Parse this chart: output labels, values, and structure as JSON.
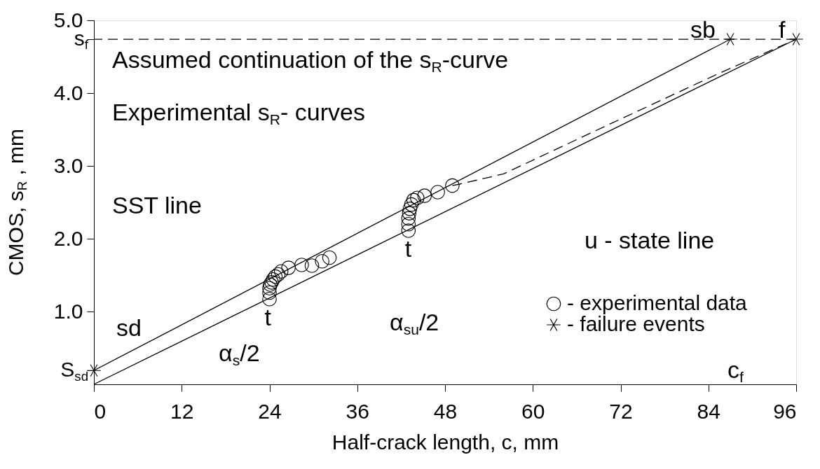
{
  "chart_data": {
    "type": "scatter",
    "xlabel": "Half-crack length, c, mm",
    "ylabel": "CMOS, s$_{R}$ , mm",
    "xlim": [
      0,
      96
    ],
    "ylim": [
      0,
      5
    ],
    "xticks": [
      0,
      12,
      24,
      36,
      48,
      60,
      72,
      84,
      96
    ],
    "yticks": [
      {
        "value": 0.19,
        "label": "S$_{sd}$"
      },
      {
        "value": 1,
        "label": "1.0"
      },
      {
        "value": 2,
        "label": "2.0"
      },
      {
        "value": 3,
        "label": "3.0"
      },
      {
        "value": 4,
        "label": "4.0"
      },
      {
        "value": 4.74,
        "label": "s$_{f}$"
      },
      {
        "value": 5,
        "label": "5.0"
      }
    ],
    "grid": false,
    "legend": "bottom right",
    "series": [
      {
        "name": "- experimental data",
        "marker": "circle",
        "color": "#000000",
        "x": [
          24,
          24,
          24,
          24.1,
          24.3,
          24.5,
          24.8,
          25.2,
          25.6,
          26.6,
          28.4,
          29.8,
          31.2,
          32.2,
          43,
          43,
          43,
          43.1,
          43.2,
          43.4,
          43.7,
          44.2,
          45.2,
          47.0,
          49.0
        ],
        "values": [
          1.17,
          1.26,
          1.32,
          1.37,
          1.4,
          1.44,
          1.48,
          1.51,
          1.55,
          1.6,
          1.64,
          1.63,
          1.69,
          1.74,
          2.11,
          2.2,
          2.28,
          2.35,
          2.41,
          2.47,
          2.53,
          2.56,
          2.59,
          2.64,
          2.73
        ]
      },
      {
        "name": "- failure events",
        "marker": "cross",
        "color": "#000000",
        "x": [
          0,
          87,
          96
        ],
        "values": [
          0.19,
          4.74,
          4.74
        ]
      },
      {
        "type": "line",
        "color": "#000000",
        "x": [
          0,
          87
        ],
        "values": [
          0.19,
          4.74
        ]
      },
      {
        "type": "line",
        "color": "#000000",
        "x": [
          0,
          96
        ],
        "values": [
          0,
          4.74
        ]
      },
      {
        "type": "line",
        "color": "#000000",
        "line_style": "dashed",
        "x": [
          49,
          50,
          56,
          70,
          85,
          96
        ],
        "values": [
          2.73,
          2.75,
          2.89,
          3.55,
          4.25,
          4.74
        ]
      }
    ],
    "ref_lines": [
      {
        "axis": "y",
        "value": 4.74,
        "line_style": "dashed",
        "color": "#000000"
      }
    ],
    "annotations": [
      "Assumed continuation of the s$_{R}$-curve",
      "Experimental s$_{R}$- curves",
      "SST line",
      "u - state line",
      {
        "text": "sd",
        "x": 0,
        "y": 0.19
      },
      {
        "text": "t",
        "x": 24,
        "y": 1.17
      },
      {
        "text": "t",
        "x": 43,
        "y": 2.11
      },
      "α$_{s}$/2",
      "α$_{su}$/2",
      {
        "text": "sb",
        "x": 87,
        "y": 4.74
      },
      {
        "text": "f",
        "x": 96,
        "y": 4.74
      },
      "c$_{f}$"
    ]
  }
}
